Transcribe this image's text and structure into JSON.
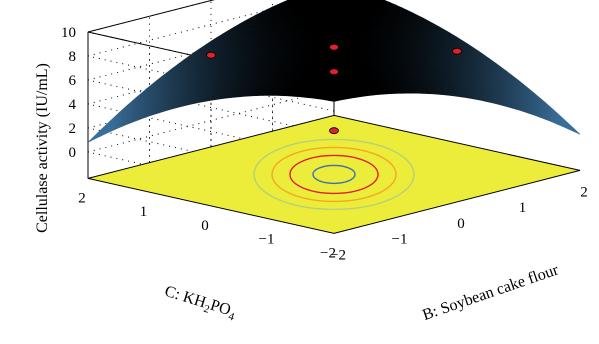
{
  "chart_data": {
    "type": "surface",
    "zlabel": "Cellulase activity (IU/mL)",
    "xlabel": "B: Soybean cake flour",
    "ylabel": "C: KH2PO4",
    "ylabel_parts": {
      "pre": "C: KH",
      "sub1": "2",
      "mid": "PO",
      "sub2": "4"
    },
    "zlim": [
      0,
      10
    ],
    "xlim": [
      -2,
      2
    ],
    "ylim": [
      -2,
      2
    ],
    "z_ticks": [
      "10",
      "8",
      "6",
      "4",
      "2",
      "0"
    ],
    "x_ticks": [
      "−2",
      "−1",
      "0",
      "1",
      "2"
    ],
    "y_ticks": [
      "2",
      "1",
      "0",
      "−1",
      "−2"
    ],
    "x_tick_values": [
      -2,
      -1,
      0,
      1,
      2
    ],
    "y_tick_values": [
      2,
      1,
      0,
      -1,
      -2
    ],
    "z_tick_values": [
      10,
      8,
      6,
      4,
      2,
      0
    ],
    "grid": true,
    "floor_contours": true,
    "colors": {
      "floor": "#ecec3a",
      "surface_high": "#000000",
      "surface_low": "#3a6f9a",
      "design_points": "#e0202a",
      "contours": [
        "#3b6fb0",
        "#e0202a",
        "#f5a623",
        "#b7cf7a"
      ]
    },
    "design_points": [
      {
        "x": -1,
        "y": 1,
        "z": 7.9
      },
      {
        "x": 0,
        "y": 0,
        "z": 8.4
      },
      {
        "x": 1,
        "y": -1,
        "z": 7.9
      },
      {
        "x": -1,
        "y": -1,
        "z": 3.9
      },
      {
        "x": 1,
        "y": 1,
        "z": 3.9
      }
    ]
  }
}
